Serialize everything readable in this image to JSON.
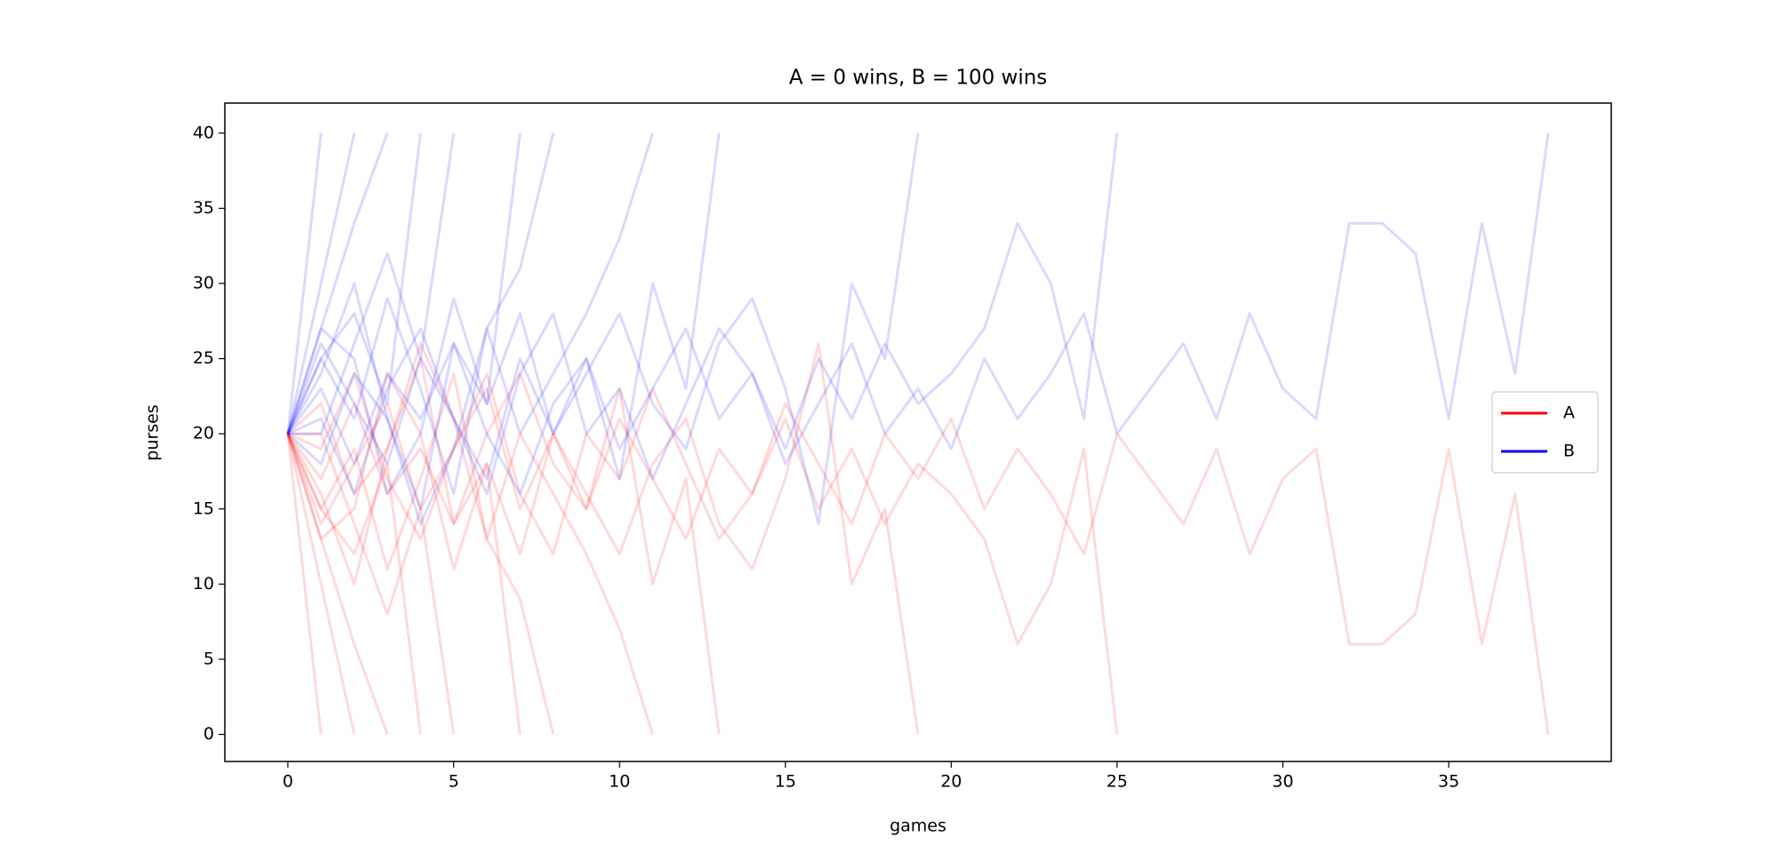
{
  "chart_data": {
    "type": "line",
    "title": "A = 0 wins, B = 100 wins",
    "xlabel": "games",
    "ylabel": "purses",
    "x": [
      0,
      1,
      2,
      3,
      4,
      5,
      6,
      7,
      8,
      9,
      10,
      11,
      12,
      13,
      14,
      15,
      16,
      17,
      18,
      19,
      20,
      21,
      22,
      23,
      24,
      25,
      26,
      27,
      28,
      29,
      30,
      31,
      32,
      33,
      34,
      35,
      36,
      37,
      38
    ],
    "xlim": [
      -1.9,
      39.9
    ],
    "ylim": [
      -1.8,
      42
    ],
    "xticks": [
      0,
      5,
      10,
      15,
      20,
      25,
      30,
      35
    ],
    "yticks": [
      0,
      5,
      10,
      15,
      20,
      25,
      30,
      35,
      40
    ],
    "legend": "center right",
    "alpha": 0.15,
    "series": [
      {
        "name": "A",
        "color": "#ff0000",
        "runs": [
          [
            20,
            0
          ],
          [
            20,
            10,
            0
          ],
          [
            20,
            13,
            6,
            0
          ],
          [
            20,
            15,
            12,
            18,
            0
          ],
          [
            20,
            20,
            14,
            8,
            15,
            0
          ],
          [
            20,
            13,
            15,
            24,
            20,
            11,
            18,
            0
          ],
          [
            20,
            16,
            10,
            19,
            26,
            21,
            13,
            9,
            0
          ],
          [
            20,
            15,
            19,
            11,
            17,
            24,
            13,
            20,
            16,
            12,
            7,
            0
          ],
          [
            20,
            22,
            16,
            19,
            25,
            14,
            18,
            12,
            20,
            15,
            23,
            10,
            17,
            0
          ],
          [
            20,
            19,
            24,
            17,
            13,
            19,
            23,
            15,
            20,
            16,
            12,
            18,
            21,
            14,
            11,
            17,
            26,
            10,
            15,
            0
          ],
          [
            20,
            14,
            18,
            22,
            15,
            19,
            24,
            16,
            12,
            20,
            17,
            23,
            18,
            13,
            16,
            21,
            15,
            19,
            14,
            18,
            16,
            13,
            6,
            10,
            19,
            0
          ],
          [
            20,
            17,
            22,
            16,
            19,
            14,
            20,
            24,
            18,
            15,
            21,
            17,
            13,
            19,
            16,
            22,
            18,
            14,
            20,
            17,
            21,
            15,
            19,
            16,
            12,
            20,
            17,
            14,
            19,
            12,
            17,
            19,
            6,
            6,
            8,
            19,
            6,
            16,
            0
          ]
        ]
      },
      {
        "name": "B",
        "color": "#0000ff",
        "runs": [
          [
            20,
            40
          ],
          [
            20,
            30,
            40
          ],
          [
            20,
            27,
            34,
            40
          ],
          [
            20,
            25,
            28,
            22,
            40
          ],
          [
            20,
            20,
            26,
            32,
            25,
            40
          ],
          [
            20,
            27,
            25,
            16,
            20,
            29,
            22,
            40
          ],
          [
            20,
            24,
            30,
            21,
            14,
            19,
            27,
            31,
            40
          ],
          [
            20,
            25,
            21,
            29,
            23,
            16,
            27,
            20,
            24,
            28,
            33,
            40
          ],
          [
            20,
            18,
            24,
            21,
            15,
            26,
            22,
            28,
            20,
            25,
            17,
            30,
            23,
            40
          ],
          [
            20,
            21,
            16,
            23,
            27,
            21,
            17,
            25,
            20,
            24,
            28,
            22,
            19,
            26,
            29,
            23,
            14,
            30,
            25,
            40
          ],
          [
            20,
            26,
            22,
            18,
            25,
            21,
            16,
            24,
            28,
            20,
            23,
            17,
            22,
            27,
            24,
            19,
            25,
            21,
            26,
            22,
            24,
            27,
            34,
            30,
            21,
            40
          ],
          [
            20,
            23,
            18,
            24,
            21,
            26,
            20,
            16,
            22,
            25,
            19,
            23,
            27,
            21,
            24,
            18,
            22,
            26,
            20,
            23,
            19,
            25,
            21,
            24,
            28,
            20,
            23,
            26,
            21,
            28,
            23,
            21,
            34,
            34,
            32,
            21,
            34,
            24,
            40
          ]
        ]
      }
    ]
  }
}
